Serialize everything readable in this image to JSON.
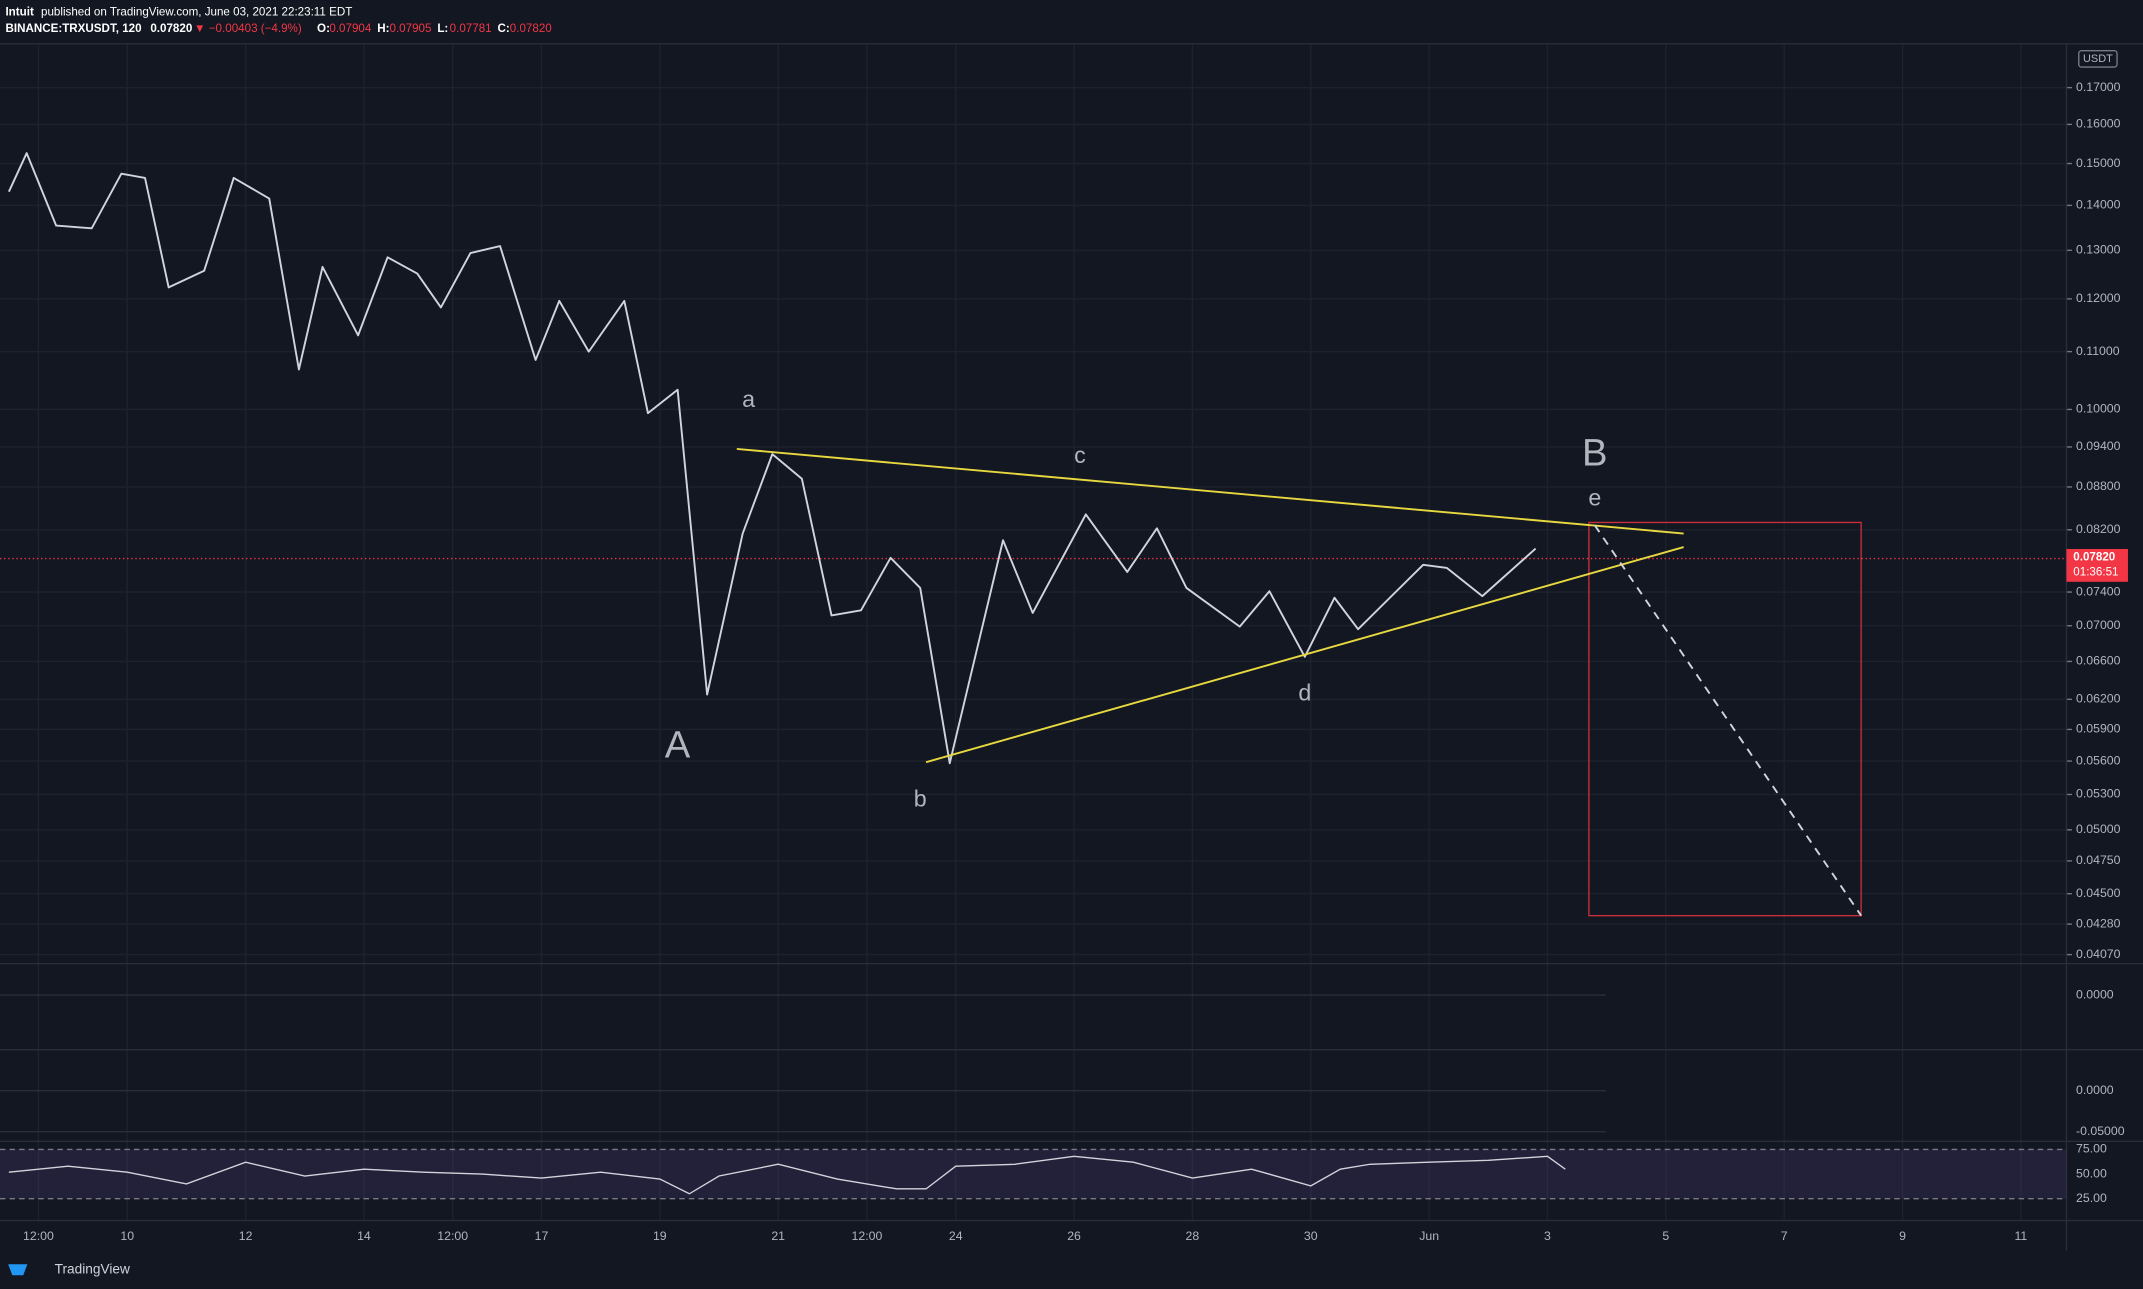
{
  "header": {
    "publisher": "Intuit",
    "published": "published on TradingView.com, June 03, 2021 22:23:11 EDT",
    "symbol": "BINANCE:TRXUSDT, 120",
    "last": "0.07820",
    "change": "▼ −0.00403 (−4.9%)",
    "ohlc": [
      {
        "key": "O:",
        "value": "0.07904"
      },
      {
        "key": "H:",
        "value": "0.07905"
      },
      {
        "key": "L:",
        "value": "0.07781"
      },
      {
        "key": "C:",
        "value": "0.07820"
      }
    ]
  },
  "chart_data": {
    "type": "line",
    "log_scale": true,
    "grid": true,
    "unit": "USDT",
    "xlim": [
      7.85,
      42.77
    ],
    "ylim": [
      0.0401,
      0.1815
    ],
    "xticks": [
      {
        "value": 8.5,
        "label": "12:00"
      },
      10,
      12,
      14,
      {
        "value": 15.5,
        "label": "12:00"
      },
      17,
      19,
      21,
      {
        "value": 22.5,
        "label": "12:00"
      },
      24,
      26,
      28,
      30,
      {
        "value": 32,
        "label": "Jun"
      },
      {
        "value": 34,
        "label": "3"
      },
      {
        "value": 36,
        "label": "5"
      },
      {
        "value": 38,
        "label": "7"
      },
      {
        "value": 40,
        "label": "9"
      },
      {
        "value": 42,
        "label": "11"
      }
    ],
    "yticks": [
      {
        "value": 0.17,
        "label": "0.17000"
      },
      {
        "value": 0.16,
        "label": "0.16000"
      },
      {
        "value": 0.15,
        "label": "0.15000"
      },
      {
        "value": 0.14,
        "label": "0.14000"
      },
      {
        "value": 0.13,
        "label": "0.13000"
      },
      {
        "value": 0.12,
        "label": "0.12000"
      },
      {
        "value": 0.11,
        "label": "0.11000"
      },
      {
        "value": 0.1,
        "label": "0.10000"
      },
      {
        "value": 0.094,
        "label": "0.09400"
      },
      {
        "value": 0.088,
        "label": "0.08800"
      },
      {
        "value": 0.082,
        "label": "0.08200"
      },
      {
        "value": 0.074,
        "label": "0.07400"
      },
      {
        "value": 0.07,
        "label": "0.07000"
      },
      {
        "value": 0.066,
        "label": "0.06600"
      },
      {
        "value": 0.062,
        "label": "0.06200"
      },
      {
        "value": 0.059,
        "label": "0.05900"
      },
      {
        "value": 0.056,
        "label": "0.05600"
      },
      {
        "value": 0.053,
        "label": "0.05300"
      },
      {
        "value": 0.05,
        "label": "0.05000"
      },
      {
        "value": 0.0475,
        "label": "0.04750"
      },
      {
        "value": 0.045,
        "label": "0.04500"
      },
      {
        "value": 0.0428,
        "label": "0.04280"
      },
      {
        "value": 0.0407,
        "label": "0.04070"
      }
    ],
    "series": [
      {
        "color": "#d1d4dc",
        "dash": false,
        "x": [
          8.0,
          8.3,
          8.8,
          9.4,
          9.9,
          10.3,
          10.7,
          11.3,
          11.8,
          12.4,
          12.9,
          13.3,
          13.9,
          14.4,
          14.9,
          15.3,
          15.8,
          16.3,
          16.9,
          17.3,
          17.8,
          18.4,
          18.8,
          19.3,
          19.8,
          20.4,
          20.9,
          21.4,
          21.9,
          22.4,
          22.9,
          23.4,
          23.9,
          24.8,
          25.3,
          26.2,
          26.9,
          27.4,
          27.9,
          28.8,
          29.3,
          29.9,
          30.4,
          30.8,
          31.9,
          32.3,
          32.9,
          33.8
        ],
        "values": [
          0.1432,
          0.1526,
          0.1354,
          0.1348,
          0.1475,
          0.1465,
          0.1223,
          0.1257,
          0.1465,
          0.1416,
          0.1068,
          0.1265,
          0.113,
          0.1285,
          0.1251,
          0.1183,
          0.1294,
          0.1309,
          0.1085,
          0.1196,
          0.11,
          0.1196,
          0.0994,
          0.1033,
          0.0625,
          0.0815,
          0.0929,
          0.0892,
          0.0712,
          0.0718,
          0.0783,
          0.0745,
          0.0558,
          0.0806,
          0.0715,
          0.0841,
          0.0765,
          0.0822,
          0.0745,
          0.0699,
          0.0741,
          0.0665,
          0.0733,
          0.0696,
          0.0774,
          0.077,
          0.0735,
          0.0795
        ]
      },
      {
        "color": "#e8d83f",
        "dash": false,
        "x": [
          20.3,
          36.3
        ],
        "values": [
          0.0937,
          0.0815
        ]
      },
      {
        "color": "#e8d83f",
        "dash": false,
        "x": [
          23.5,
          36.3
        ],
        "values": [
          0.0559,
          0.0797
        ]
      },
      {
        "color": "#d1d4dc",
        "dash": true,
        "x": [
          34.8,
          39.3
        ],
        "values": [
          0.0826,
          0.0434
        ]
      }
    ],
    "box": {
      "x": [
        34.7,
        39.3
      ],
      "y": [
        0.0434,
        0.083
      ],
      "color": "#c62f3b"
    },
    "price_line": {
      "value": 0.0782,
      "label": "0.07820",
      "countdown": "01:36:51",
      "color": "#f23645"
    },
    "annotations": [
      {
        "text": "a",
        "x": 20.5,
        "y": 0.1014,
        "size": 17
      },
      {
        "text": "c",
        "x": 26.1,
        "y": 0.0925,
        "size": 17
      },
      {
        "text": "B",
        "x": 34.8,
        "y": 0.0927,
        "size": 28
      },
      {
        "text": "e",
        "x": 34.8,
        "y": 0.0862,
        "size": 17
      },
      {
        "text": "d",
        "x": 29.9,
        "y": 0.0625,
        "size": 17
      },
      {
        "text": "A",
        "x": 19.3,
        "y": 0.0573,
        "size": 28
      },
      {
        "text": "b",
        "x": 23.4,
        "y": 0.0525,
        "size": 17
      }
    ],
    "osc1": {
      "ylim": [
        -0.04,
        0.023
      ],
      "yticks": [
        {
          "value": 0,
          "label": "0.0000"
        }
      ]
    },
    "osc2": {
      "ylim": [
        -0.0617,
        0.05
      ],
      "yticks": [
        {
          "value": 0,
          "label": "0.0000"
        },
        {
          "value": -0.05,
          "label": "-0.05000"
        }
      ]
    },
    "rsi": {
      "ylim": [
        2.8,
        83.3
      ],
      "yticks": [
        {
          "value": 75,
          "label": "75.00"
        },
        {
          "value": 50,
          "label": "50.00"
        },
        {
          "value": 25,
          "label": "25.00"
        }
      ],
      "color": "#d1d4dc",
      "x": [
        8,
        9,
        10,
        11,
        12,
        13,
        14,
        15,
        16,
        17,
        18,
        19,
        19.5,
        20,
        21,
        22,
        23,
        23.5,
        24,
        25,
        26,
        27,
        28,
        29,
        30,
        30.5,
        31,
        32,
        33,
        34,
        34.3
      ],
      "values": [
        52,
        58,
        52,
        40,
        62,
        48,
        55,
        52,
        50,
        46,
        52,
        45,
        30,
        48,
        60,
        45,
        35,
        35,
        58,
        60,
        68,
        62,
        46,
        55,
        38,
        55,
        60,
        62,
        64,
        68,
        55
      ]
    }
  },
  "footer": "TradingView"
}
